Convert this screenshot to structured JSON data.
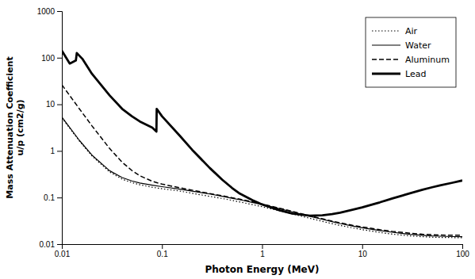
{
  "chart_data": {
    "type": "line",
    "xlabel": "Photon Energy (MeV)",
    "ylabel": "Mass Attenuation Coefficient\nu/p (cm2/g)",
    "log": true,
    "grid": false,
    "legend": "upper right",
    "xlim": [
      0.01,
      100
    ],
    "ylim": [
      0.01,
      1000
    ],
    "xticks": [
      0.01,
      0.1,
      1,
      10,
      100
    ],
    "yticks": [
      0.01,
      0.1,
      1,
      10,
      100,
      1000
    ],
    "series": [
      {
        "name": "Air",
        "color": "#000000",
        "line_style": "dotted",
        "x": [
          0.01,
          0.015,
          0.02,
          0.03,
          0.04,
          0.05,
          0.06,
          0.08,
          0.1,
          0.15,
          0.2,
          0.3,
          0.4,
          0.5,
          0.6,
          0.8,
          1.0,
          1.5,
          2.0,
          3.0,
          4.0,
          5.0,
          6.0,
          8.0,
          10.0,
          15.0,
          20.0,
          30.0,
          40.0,
          50.0,
          60.0,
          80.0,
          100.0
        ],
        "values": [
          5.12,
          1.614,
          0.778,
          0.353,
          0.247,
          0.209,
          0.188,
          0.166,
          0.154,
          0.138,
          0.123,
          0.106,
          0.0953,
          0.0869,
          0.0803,
          0.0706,
          0.0636,
          0.0517,
          0.0445,
          0.0358,
          0.0308,
          0.0275,
          0.0252,
          0.0223,
          0.0205,
          0.0178,
          0.0164,
          0.015,
          0.0144,
          0.0141,
          0.0139,
          0.0138,
          0.0138
        ]
      },
      {
        "name": "Water",
        "color": "#000000",
        "line_style": "solid",
        "x": [
          0.01,
          0.015,
          0.02,
          0.03,
          0.04,
          0.05,
          0.06,
          0.08,
          0.1,
          0.15,
          0.2,
          0.3,
          0.4,
          0.5,
          0.6,
          0.8,
          1.0,
          1.5,
          2.0,
          3.0,
          4.0,
          5.0,
          6.0,
          8.0,
          10.0,
          15.0,
          20.0,
          30.0,
          40.0,
          50.0,
          60.0,
          80.0,
          100.0
        ],
        "values": [
          5.33,
          1.673,
          0.813,
          0.376,
          0.268,
          0.227,
          0.205,
          0.184,
          0.171,
          0.151,
          0.137,
          0.119,
          0.106,
          0.0966,
          0.0896,
          0.0786,
          0.0707,
          0.0575,
          0.0493,
          0.0396,
          0.034,
          0.0303,
          0.0277,
          0.0245,
          0.0225,
          0.0195,
          0.018,
          0.0162,
          0.0155,
          0.015,
          0.0148,
          0.0145,
          0.0144
        ]
      },
      {
        "name": "Aluminum",
        "color": "#000000",
        "line_style": "dashed",
        "x": [
          0.01,
          0.015,
          0.02,
          0.03,
          0.04,
          0.05,
          0.06,
          0.08,
          0.1,
          0.15,
          0.2,
          0.3,
          0.4,
          0.5,
          0.6,
          0.8,
          1.0,
          1.5,
          2.0,
          3.0,
          4.0,
          5.0,
          6.0,
          8.0,
          10.0,
          15.0,
          20.0,
          30.0,
          40.0,
          50.0,
          60.0,
          80.0,
          100.0
        ],
        "values": [
          26.2,
          7.955,
          3.441,
          1.128,
          0.572,
          0.381,
          0.294,
          0.223,
          0.194,
          0.162,
          0.144,
          0.122,
          0.109,
          0.0993,
          0.0919,
          0.0808,
          0.0726,
          0.0589,
          0.0507,
          0.0405,
          0.035,
          0.0313,
          0.0287,
          0.0254,
          0.0234,
          0.0204,
          0.0188,
          0.0172,
          0.0163,
          0.0159,
          0.0157,
          0.0155,
          0.0155
        ]
      },
      {
        "name": "Lead",
        "color": "#000000",
        "line_style": "solid",
        "x": [
          0.01,
          0.012,
          0.0138,
          0.0141,
          0.016,
          0.02,
          0.03,
          0.04,
          0.05,
          0.06,
          0.08,
          0.088,
          0.0886,
          0.1,
          0.15,
          0.2,
          0.3,
          0.4,
          0.5,
          0.6,
          0.8,
          1.0,
          1.5,
          2.0,
          3.0,
          4.0,
          5.0,
          6.0,
          8.0,
          10.0,
          15.0,
          20.0,
          30.0,
          40.0,
          50.0,
          60.0,
          80.0,
          100.0
        ],
        "values": [
          141.0,
          75.0,
          87.0,
          126.0,
          95.0,
          45.0,
          15.5,
          8.0,
          5.55,
          4.3,
          3.15,
          2.6,
          8.0,
          5.55,
          2.14,
          1.06,
          0.431,
          0.241,
          0.161,
          0.121,
          0.0875,
          0.071,
          0.053,
          0.0453,
          0.0408,
          0.0415,
          0.044,
          0.0472,
          0.0545,
          0.0614,
          0.0788,
          0.0955,
          0.123,
          0.147,
          0.166,
          0.182,
          0.208,
          0.232
        ]
      }
    ]
  }
}
